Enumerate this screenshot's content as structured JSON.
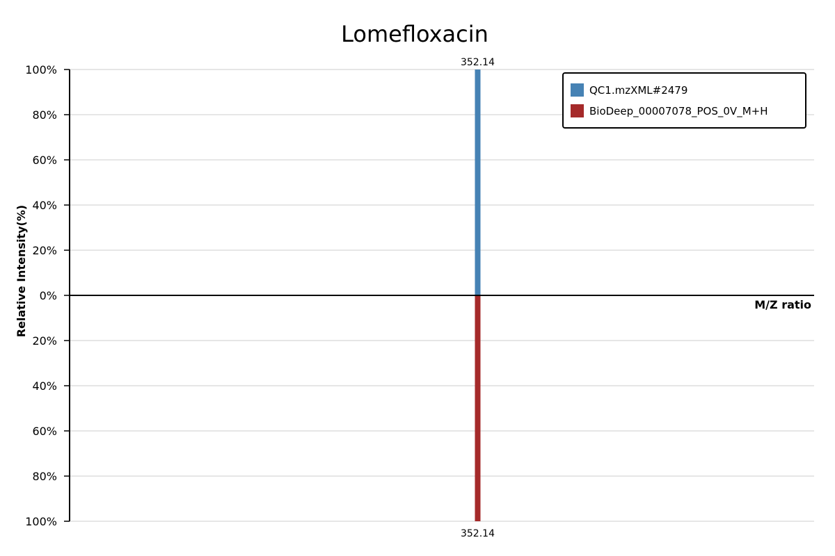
{
  "chart_data": {
    "type": "bar",
    "title": "Lomefloxacin",
    "xlabel": "M/Z ratio",
    "ylabel": "Relative Intensity(%)",
    "ylim": [
      -100,
      100
    ],
    "y_ticks": [
      {
        "value": 100,
        "label": "100%"
      },
      {
        "value": 80,
        "label": "80%"
      },
      {
        "value": 60,
        "label": "60%"
      },
      {
        "value": 40,
        "label": "40%"
      },
      {
        "value": 20,
        "label": "20%"
      },
      {
        "value": 0,
        "label": "0%"
      },
      {
        "value": -20,
        "label": "20%"
      },
      {
        "value": -40,
        "label": "40%"
      },
      {
        "value": -60,
        "label": "60%"
      },
      {
        "value": -80,
        "label": "80%"
      },
      {
        "value": -100,
        "label": "100%"
      }
    ],
    "grid": true,
    "legend_position": "top-right",
    "series": [
      {
        "name": "QC1.mzXML#2479",
        "color": "#4682b4",
        "direction": "up",
        "peaks": [
          {
            "mz": 352.14,
            "intensity": 100,
            "label": "352.14"
          }
        ]
      },
      {
        "name": "BioDeep_00007078_POS_0V_M+H",
        "color": "#a52a2a",
        "direction": "down",
        "peaks": [
          {
            "mz": 352.14,
            "intensity": 100,
            "label": "352.14"
          }
        ]
      }
    ]
  }
}
